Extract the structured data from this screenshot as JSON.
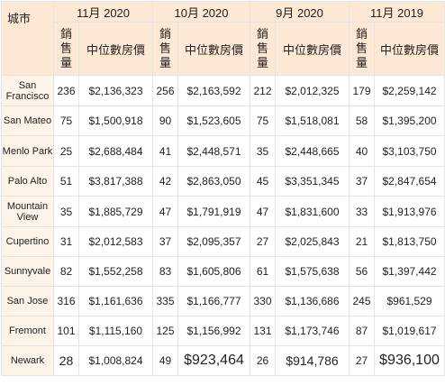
{
  "header": {
    "city_label": "城市",
    "periods": [
      "11月 2020",
      "10月 2020",
      "9月 2020",
      "11月 2019"
    ],
    "count_label": [
      "銷",
      "售",
      "量"
    ],
    "price_label": "中位數房價"
  },
  "rows": [
    {
      "city": "San Francisco",
      "values": [
        "236",
        "$2,136,323",
        "256",
        "$2,163,592",
        "212",
        "$2,012,325",
        "179",
        "$2,259,142"
      ]
    },
    {
      "city": "San Mateo",
      "values": [
        "75",
        "$1,500,918",
        "90",
        "$1,523,605",
        "75",
        "$1,518,081",
        "58",
        "$1,395,200"
      ]
    },
    {
      "city": "Menlo Park",
      "values": [
        "25",
        "$2,688,484",
        "41",
        "$2,448,571",
        "35",
        "$2,448,665",
        "40",
        "$3,103,750"
      ]
    },
    {
      "city": "Palo Alto",
      "values": [
        "51",
        "$3,817,388",
        "42",
        "$2,863,050",
        "45",
        "$3,351,345",
        "37",
        "$2,847,654"
      ]
    },
    {
      "city": "Mountain View",
      "values": [
        "35",
        "$1,885,729",
        "47",
        "$1,791,919",
        "47",
        "$1,831,600",
        "33",
        "$1,913,976"
      ]
    },
    {
      "city": "Cupertino",
      "values": [
        "31",
        "$2,012,583",
        "37",
        "$2,095,357",
        "27",
        "$2,025,843",
        "21",
        "$1,813,750"
      ]
    },
    {
      "city": "Sunnyvale",
      "values": [
        "82",
        "$1,552,258",
        "83",
        "$1,605,806",
        "61",
        "$1,575,638",
        "56",
        "$1,397,442"
      ]
    },
    {
      "city": "San Jose",
      "values": [
        "316",
        "$1,161,636",
        "335",
        "$1,166,777",
        "330",
        "$1,136,686",
        "245",
        "$961,529"
      ]
    },
    {
      "city": "Fremont",
      "values": [
        "101",
        "$1,115,160",
        "125",
        "$1,156,992",
        "131",
        "$1,173,746",
        "87",
        "$1,019,617"
      ]
    },
    {
      "city": "Newark",
      "values": [
        "28",
        "$1,008,824",
        "49",
        "$923,464",
        "26",
        "$914,786",
        "27",
        "$936,100"
      ]
    }
  ],
  "colors": {
    "header_bg": "#fce8d4",
    "city_bg": "#fdf3e9",
    "border": "#e4e4e4"
  }
}
